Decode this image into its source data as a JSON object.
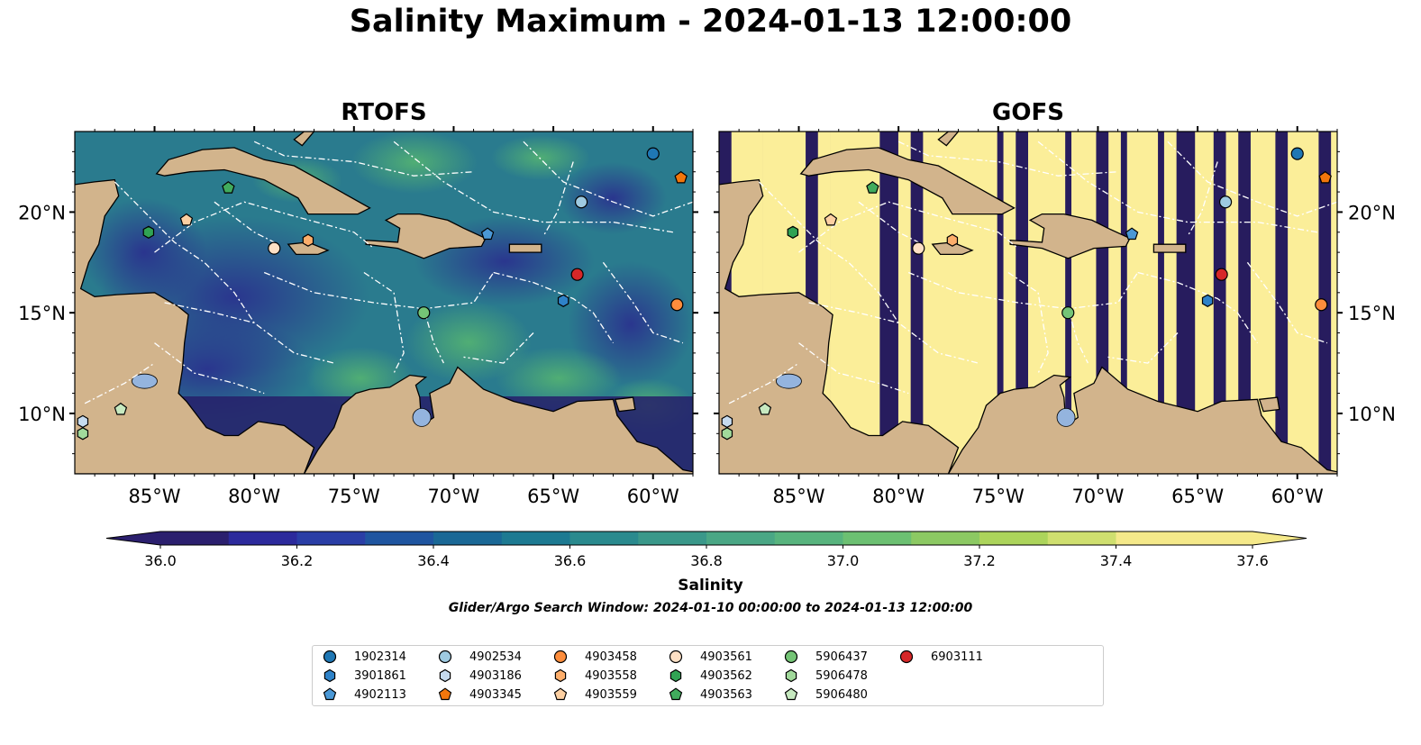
{
  "figure": {
    "title": "Salinity Maximum - 2024-01-13 12:00:00",
    "panels": [
      {
        "title": "RTOFS"
      },
      {
        "title": "GOFS"
      }
    ],
    "lon_ticks": [
      "85°W",
      "80°W",
      "75°W",
      "70°W",
      "65°W",
      "60°W"
    ],
    "lat_ticks": [
      "20°N",
      "15°N",
      "10°N"
    ],
    "extent": {
      "lon": [
        -89,
        -58
      ],
      "lat": [
        7,
        24
      ]
    }
  },
  "colorbar": {
    "label": "Salinity",
    "min": 36.0,
    "max": 37.6,
    "step": 0.1,
    "extend": "both",
    "ticks": [
      "36.0",
      "36.2",
      "36.4",
      "36.6",
      "36.8",
      "37.0",
      "37.2",
      "37.4",
      "37.6"
    ]
  },
  "search_window": "Glider/Argo Search Window: 2024-01-10 00:00:00 to 2024-01-13 12:00:00",
  "colors": {
    "land": "#d2b48c",
    "gofs_dark": "#271c5e",
    "gofs_light": "#fbee99",
    "eez": "#ffffff"
  },
  "floats": [
    {
      "id": "1902314",
      "marker": "circle",
      "color": "#1f77b4",
      "lon": -60.0,
      "lat": 22.9
    },
    {
      "id": "3901861",
      "marker": "hexagon",
      "color": "#2e82c8",
      "lon": -64.5,
      "lat": 15.6
    },
    {
      "id": "4902113",
      "marker": "pentagon",
      "color": "#4a98d6",
      "lon": -68.3,
      "lat": 18.9
    },
    {
      "id": "4902534",
      "marker": "circle",
      "color": "#9ecae1",
      "lon": -63.6,
      "lat": 20.5
    },
    {
      "id": "4903186",
      "marker": "hexagon",
      "color": "#c6dbef",
      "lon": -88.6,
      "lat": 9.6
    },
    {
      "id": "4903345",
      "marker": "pentagon",
      "color": "#f2760c",
      "lon": -58.6,
      "lat": 21.7
    },
    {
      "id": "4903458",
      "marker": "circle",
      "color": "#fd8d3c",
      "lon": -58.8,
      "lat": 15.4
    },
    {
      "id": "4903558",
      "marker": "hexagon",
      "color": "#fdae6b",
      "lon": -77.3,
      "lat": 18.6
    },
    {
      "id": "4903559",
      "marker": "pentagon",
      "color": "#fdd0a2",
      "lon": -83.4,
      "lat": 19.6
    },
    {
      "id": "4903561",
      "marker": "circle",
      "color": "#fde0c5",
      "lon": -79.0,
      "lat": 18.2
    },
    {
      "id": "4903562",
      "marker": "hexagon",
      "color": "#31a354",
      "lon": -85.3,
      "lat": 19.0
    },
    {
      "id": "4903563",
      "marker": "pentagon",
      "color": "#41ab5d",
      "lon": -81.3,
      "lat": 21.2
    },
    {
      "id": "5906437",
      "marker": "circle",
      "color": "#74c476",
      "lon": -71.5,
      "lat": 15.0
    },
    {
      "id": "5906478",
      "marker": "hexagon",
      "color": "#a1d99b",
      "lon": -88.6,
      "lat": 9.0
    },
    {
      "id": "5906480",
      "marker": "pentagon",
      "color": "#c7e9c0",
      "lon": -86.7,
      "lat": 10.2
    },
    {
      "id": "6903111",
      "marker": "circle",
      "color": "#d62728",
      "lon": -63.8,
      "lat": 16.9
    }
  ]
}
